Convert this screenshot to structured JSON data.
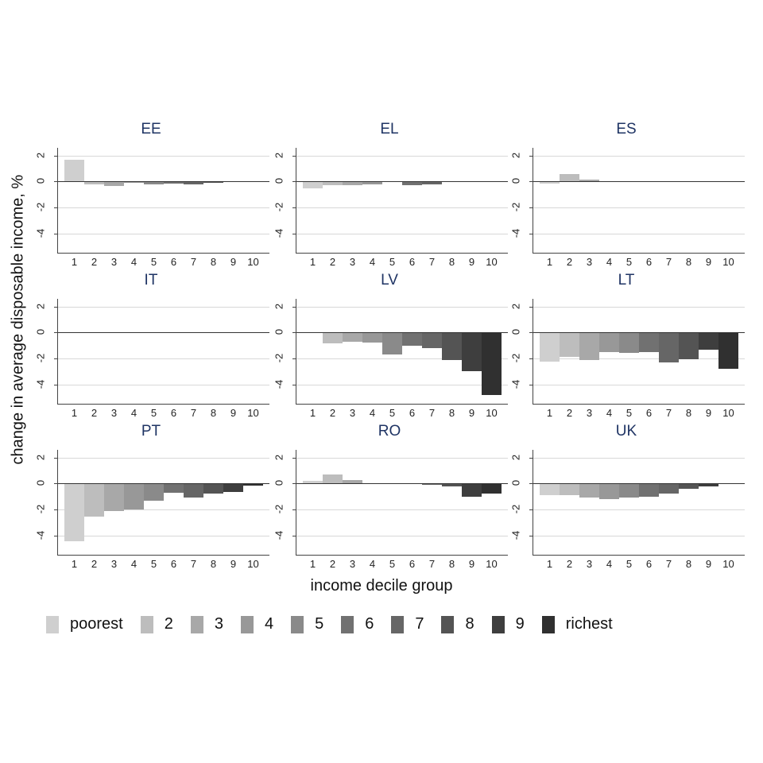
{
  "chart_data": {
    "type": "bar",
    "layout": "small-multiples 3x3",
    "ylabel": "change in average disposable income, %",
    "xlabel": "income decile group",
    "ylim": [
      -5.5,
      2.6
    ],
    "yticks": [
      2,
      0,
      -2,
      -4
    ],
    "categories": [
      "1",
      "2",
      "3",
      "4",
      "5",
      "6",
      "7",
      "8",
      "9",
      "10"
    ],
    "grid": true,
    "legend_position": "bottom",
    "legend": [
      "poorest",
      "2",
      "3",
      "4",
      "5",
      "6",
      "7",
      "8",
      "9",
      "richest"
    ],
    "colors": [
      "#cfcfcf",
      "#bdbdbd",
      "#a8a8a8",
      "#989898",
      "#8a8a8a",
      "#717171",
      "#666666",
      "#545454",
      "#3e3e3e",
      "#303030"
    ],
    "panels": [
      {
        "title": "EE",
        "values": [
          1.7,
          -0.25,
          -0.35,
          -0.1,
          -0.2,
          -0.15,
          -0.2,
          -0.1,
          -0.05,
          0.0
        ]
      },
      {
        "title": "EL",
        "values": [
          -0.55,
          -0.3,
          -0.3,
          -0.25,
          -0.05,
          -0.3,
          -0.2,
          -0.05,
          -0.05,
          0.05
        ]
      },
      {
        "title": "ES",
        "values": [
          -0.15,
          0.6,
          0.15,
          0.0,
          0.0,
          0.0,
          0.0,
          0.0,
          0.0,
          0.05
        ]
      },
      {
        "title": "IT",
        "values": [
          0,
          0,
          0,
          0,
          0,
          0,
          0,
          0,
          0,
          0
        ]
      },
      {
        "title": "LV",
        "values": [
          0.05,
          -0.85,
          -0.7,
          -0.75,
          -1.7,
          -1.05,
          -1.2,
          -2.1,
          -3.0,
          -4.8
        ]
      },
      {
        "title": "LT",
        "values": [
          -2.25,
          -1.9,
          -2.1,
          -1.5,
          -1.6,
          -1.5,
          -2.3,
          -2.05,
          -1.3,
          -2.8
        ]
      },
      {
        "title": "PT",
        "values": [
          -4.45,
          -2.55,
          -2.1,
          -2.0,
          -1.3,
          -0.7,
          -1.1,
          -0.75,
          -0.65,
          -0.15
        ]
      },
      {
        "title": "RO",
        "values": [
          0.2,
          0.7,
          0.25,
          0.0,
          0.0,
          -0.05,
          -0.1,
          -0.2,
          -1.0,
          -0.75
        ]
      },
      {
        "title": "UK",
        "values": [
          -0.9,
          -0.9,
          -1.1,
          -1.2,
          -1.1,
          -1.0,
          -0.75,
          -0.4,
          -0.2,
          -0.05
        ]
      }
    ]
  }
}
